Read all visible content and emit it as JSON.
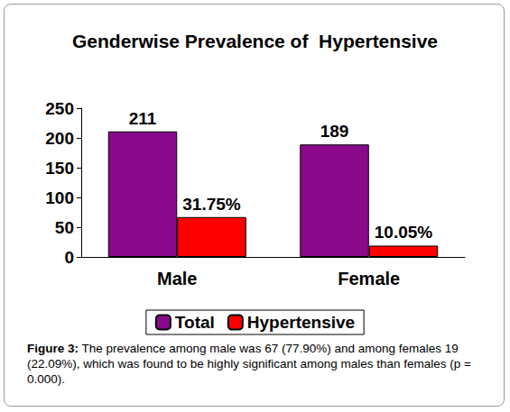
{
  "chart_data": {
    "type": "bar",
    "title": "Genderwise Prevalence of  Hypertensive",
    "categories": [
      "Male",
      "Female"
    ],
    "series": [
      {
        "name": "Total",
        "color": "#8b0a8b",
        "values": [
          211,
          189
        ]
      },
      {
        "name": "Hypertensive",
        "color": "#ff0000",
        "values": [
          67,
          19
        ],
        "point_labels": [
          "31.75%",
          "10.05%"
        ]
      }
    ],
    "ylim": [
      0,
      250
    ],
    "yticks": [
      0,
      50,
      100,
      150,
      200,
      250
    ],
    "grid": false,
    "legend": "bottom",
    "data_labels": true
  },
  "caption": {
    "label": "Figure 3:",
    "text": "The prevalence among male was 67 (77.90%) and among females 19 (22.09%), which was found to be highly significant among males than females (p = 0.000)."
  }
}
